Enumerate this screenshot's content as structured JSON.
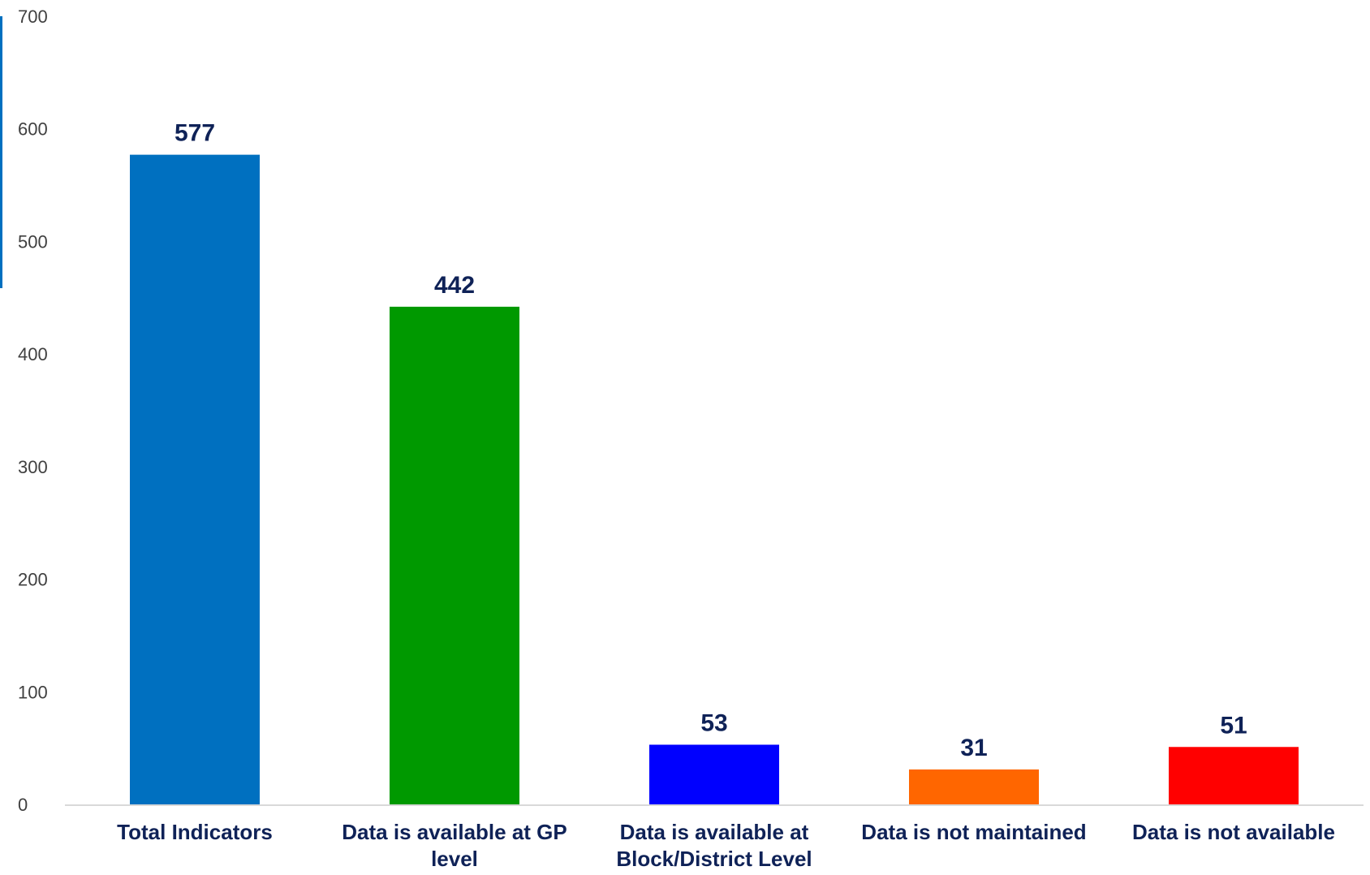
{
  "chart_data": {
    "type": "bar",
    "title": "",
    "xlabel": "",
    "ylabel": "",
    "categories": [
      "Total Indicators",
      "Data is available at GP level",
      "Data is available at Block/District Level",
      "Data is not maintained",
      "Data is not available"
    ],
    "category_lines": [
      [
        "Total Indicators"
      ],
      [
        "Data is available at GP",
        "level"
      ],
      [
        "Data is available at",
        "Block/District Level"
      ],
      [
        "Data is not maintained"
      ],
      [
        "Data is not available"
      ]
    ],
    "values": [
      577,
      442,
      53,
      31,
      51
    ],
    "value_labels": [
      "577",
      "442",
      "53",
      "31",
      "51"
    ],
    "colors": [
      "#0070c0",
      "#009900",
      "#0000ff",
      "#ff6600",
      "#ff0000"
    ],
    "ylim": [
      0,
      700
    ],
    "yticks": [
      0,
      100,
      200,
      300,
      400,
      500,
      600,
      700
    ],
    "ytick_labels": [
      "0",
      "100",
      "200",
      "300",
      "400",
      "500",
      "600",
      "700"
    ],
    "grid": false,
    "legend": "none",
    "axis_color": "#d9d9d9",
    "accent_color": "#0070c0"
  }
}
